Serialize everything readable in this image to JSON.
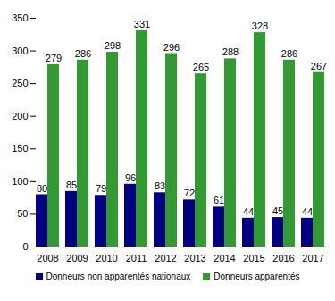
{
  "chart_data": {
    "type": "bar",
    "categories": [
      "2008",
      "2009",
      "2010",
      "2011",
      "2012",
      "2013",
      "2014",
      "2015",
      "2016",
      "2017"
    ],
    "series": [
      {
        "name": "Donneurs non apparentés nationaux",
        "color": "#000080",
        "values": [
          80,
          85,
          79,
          96,
          83,
          72,
          61,
          44,
          45,
          44
        ]
      },
      {
        "name": "Donneurs apparentés",
        "color": "#339933",
        "values": [
          279,
          286,
          298,
          331,
          296,
          265,
          288,
          328,
          286,
          267
        ]
      }
    ],
    "ylim": [
      0,
      350
    ],
    "yticks": [
      0,
      50,
      100,
      150,
      200,
      250,
      300,
      350
    ],
    "grid": false,
    "data_labels": true,
    "legend": "bottom"
  }
}
